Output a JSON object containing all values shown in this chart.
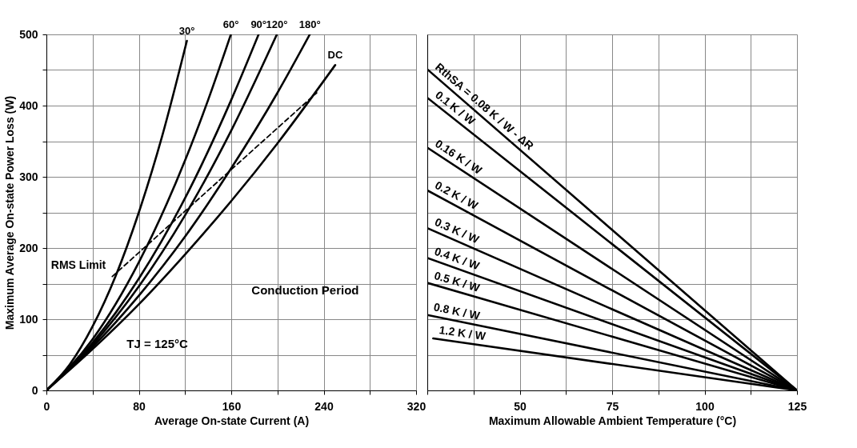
{
  "chart_data": [
    {
      "type": "line",
      "xlabel": "Average On-state Current (A)",
      "ylabel": "Maximum Average On-state Power Loss (W)",
      "xlim": [
        0,
        320
      ],
      "xticks": [
        0,
        {
          "value": 40,
          "label": null
        },
        80,
        {
          "value": 120,
          "label": null
        },
        160,
        {
          "value": 200,
          "label": null
        },
        240,
        {
          "value": 280,
          "label": null
        },
        320
      ],
      "ylim": [
        0,
        500
      ],
      "yticks": [
        0,
        {
          "value": 50,
          "label": null
        },
        100,
        {
          "value": 150,
          "label": null
        },
        200,
        {
          "value": 250,
          "label": null
        },
        300,
        {
          "value": 350,
          "label": null
        },
        400,
        {
          "value": 450,
          "label": null
        },
        500
      ],
      "grid": true,
      "marker": "none",
      "line_style": "solid",
      "annotations": [
        "Conduction Period",
        "TJ = 125°C"
      ],
      "series": [
        {
          "name": "30°",
          "color": "#000000",
          "x": [
            0,
            20,
            40,
            60,
            80,
            100,
            121.6
          ],
          "values": [
            0,
            36,
            90,
            161,
            250,
            356,
            491
          ]
        },
        {
          "name": "60°",
          "color": "#000000",
          "x": [
            0,
            40,
            80,
            120,
            140,
            159.7
          ],
          "values": [
            0,
            72,
            180,
            323,
            408,
            500
          ]
        },
        {
          "name": "90°",
          "color": "#000000",
          "x": [
            0,
            40,
            80,
            120,
            160,
            183.7
          ],
          "values": [
            0,
            67,
            157,
            270,
            408,
            500
          ]
        },
        {
          "name": "120°",
          "color": "#000000",
          "x": [
            0,
            40,
            80,
            120,
            160,
            199.5
          ],
          "values": [
            0,
            64,
            146,
            246,
            365,
            500
          ]
        },
        {
          "name": "180°",
          "color": "#000000",
          "x": [
            0,
            40,
            80,
            120,
            160,
            200,
            228
          ],
          "values": [
            0,
            61,
            133,
            216,
            312,
            418,
            500
          ]
        },
        {
          "name": "DC",
          "color": "#000000",
          "x": [
            0,
            40,
            80,
            120,
            160,
            200,
            250
          ],
          "values": [
            0,
            58,
            121,
            191,
            266,
            347,
            457
          ]
        },
        {
          "name": "RMS Limit",
          "color": "#000000",
          "line_style": "dashed",
          "x": [
            57,
            234
          ],
          "values": [
            160,
            418
          ]
        }
      ]
    },
    {
      "type": "line",
      "xlabel": "Maximum Allowable Ambient Temperature (°C)",
      "xlim": [
        25,
        125
      ],
      "xticks": [
        {
          "value": 25,
          "label": null
        },
        {
          "value": 37.5,
          "label": null
        },
        50,
        {
          "value": 62.5,
          "label": null
        },
        75,
        {
          "value": 87.5,
          "label": null
        },
        100,
        {
          "value": 112.5,
          "label": null
        },
        125
      ],
      "ylim": [
        0,
        500
      ],
      "yticks": [
        0,
        50,
        100,
        150,
        200,
        250,
        300,
        350,
        400,
        450,
        500
      ],
      "tick_labels": "x",
      "grid": true,
      "marker": "none",
      "line_style": "solid",
      "series": [
        {
          "name": "RthSA = 0.08 K / W - ΔR",
          "color": "#000000",
          "x": [
            25,
            125
          ],
          "values": [
            451,
            0
          ]
        },
        {
          "name": "0.1 K / W",
          "color": "#000000",
          "x": [
            25,
            125
          ],
          "values": [
            411,
            0
          ]
        },
        {
          "name": "0.16 K / W",
          "color": "#000000",
          "x": [
            25,
            125
          ],
          "values": [
            341,
            0
          ]
        },
        {
          "name": "0.2 K / W",
          "color": "#000000",
          "x": [
            25,
            125
          ],
          "values": [
            281,
            0
          ]
        },
        {
          "name": "0.3 K / W",
          "color": "#000000",
          "x": [
            25,
            125
          ],
          "values": [
            228,
            0
          ]
        },
        {
          "name": "0.4 K / W",
          "color": "#000000",
          "x": [
            25,
            125
          ],
          "values": [
            186,
            0
          ]
        },
        {
          "name": "0.5 K / W",
          "color": "#000000",
          "x": [
            25,
            125
          ],
          "values": [
            151,
            0
          ]
        },
        {
          "name": "0.8 K / W",
          "color": "#000000",
          "x": [
            25,
            125
          ],
          "values": [
            106,
            0
          ]
        },
        {
          "name": "1.2 K / W",
          "color": "#000000",
          "x": [
            26.6,
            125
          ],
          "values": [
            73,
            0
          ]
        }
      ]
    }
  ]
}
